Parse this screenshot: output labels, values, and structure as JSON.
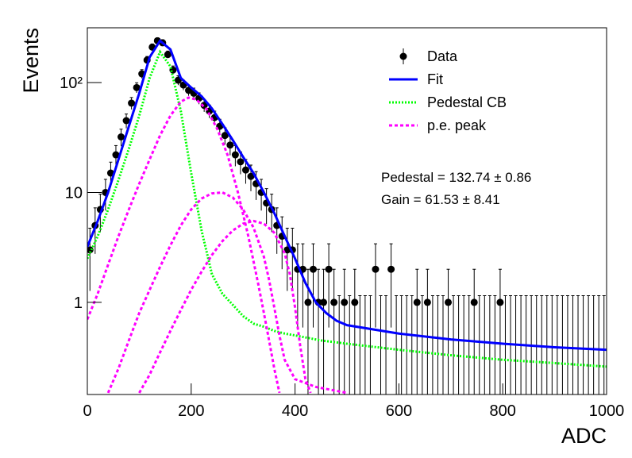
{
  "chart_data": {
    "type": "scatter",
    "x_label": "ADC",
    "y_label": "Events",
    "log_y": true,
    "xlim": [
      0,
      1000
    ],
    "ylim": [
      0.145,
      315
    ],
    "xticks": [
      0,
      200,
      400,
      600,
      800,
      1000
    ],
    "yticks": [
      1,
      10,
      {
        "value": 100,
        "label": "10²"
      }
    ],
    "legend": "upper right",
    "annotations": [
      "Pedestal = 132.74 ± 0.86",
      "Gain = 61.53 ± 8.41"
    ],
    "series": [
      {
        "name": "Data",
        "type": "errorbar",
        "color": "#000000",
        "x": [
          5,
          15,
          25,
          35,
          45,
          55,
          65,
          75,
          85,
          95,
          105,
          115,
          125,
          135,
          145,
          155,
          165,
          175,
          185,
          195,
          205,
          215,
          225,
          235,
          245,
          255,
          265,
          275,
          285,
          295,
          305,
          315,
          325,
          335,
          345,
          355,
          365,
          375,
          385,
          395,
          405,
          415,
          425,
          435,
          445,
          455,
          465,
          475,
          485,
          495,
          505,
          515,
          525,
          535,
          545,
          555,
          565,
          575,
          585,
          595,
          605,
          615,
          625,
          635,
          645,
          655,
          665,
          675,
          685,
          695,
          705,
          715,
          725,
          735,
          745,
          755,
          765,
          775,
          785,
          795,
          805,
          815,
          825,
          835,
          845,
          855,
          865,
          875,
          885,
          895,
          905,
          915,
          925,
          935,
          945,
          955,
          965,
          975,
          985,
          995
        ],
        "values": [
          3,
          5,
          7,
          10,
          15,
          22,
          32,
          45,
          65,
          90,
          120,
          160,
          210,
          240,
          230,
          180,
          130,
          105,
          95,
          85,
          80,
          72,
          62,
          55,
          48,
          40,
          33,
          27,
          22,
          19,
          16,
          14,
          12,
          10,
          8,
          7,
          5,
          4,
          3,
          3,
          2,
          2,
          1,
          2,
          1,
          1,
          2,
          1,
          0,
          1,
          0,
          1,
          0,
          0,
          0,
          2,
          0,
          0,
          2,
          0,
          0,
          0,
          0,
          1,
          0,
          1,
          0,
          0,
          0,
          1,
          0,
          0,
          0,
          0,
          1,
          0,
          0,
          0,
          0,
          1,
          0,
          0,
          0,
          0,
          0,
          0,
          0,
          0,
          0,
          0,
          0,
          0,
          0,
          0,
          0,
          0,
          0,
          0,
          0,
          0
        ],
        "errors": [
          1.73,
          2.24,
          2.65,
          3.16,
          3.87,
          4.69,
          5.66,
          6.71,
          8.06,
          9.49,
          10.95,
          12.65,
          14.49,
          15.49,
          15.17,
          13.42,
          11.4,
          10.25,
          9.75,
          9.22,
          8.94,
          8.49,
          7.87,
          7.42,
          6.93,
          6.32,
          5.74,
          5.2,
          4.69,
          4.36,
          4,
          3.74,
          3.46,
          3.16,
          2.83,
          2.65,
          2.24,
          2,
          1.73,
          1.73,
          1.41,
          1.41,
          1,
          1.41,
          1,
          1,
          1.41,
          1,
          1.15,
          1,
          1.15,
          1,
          1.15,
          1.15,
          1.15,
          1.41,
          1.15,
          1.15,
          1.41,
          1.15,
          1.15,
          1.15,
          1.15,
          1,
          1.15,
          1,
          1.15,
          1.15,
          1.15,
          1,
          1.15,
          1.15,
          1.15,
          1.15,
          1,
          1.15,
          1.15,
          1.15,
          1.15,
          1,
          1.15,
          1.15,
          1.15,
          1.15,
          1.15,
          1.15,
          1.15,
          1.15,
          1.15,
          1.15,
          1.15,
          1.15,
          1.15,
          1.15,
          1.15,
          1.15,
          1.15,
          1.15,
          1.15,
          1.15
        ]
      },
      {
        "name": "Fit",
        "type": "line",
        "style": "solid",
        "color": "#0000ff",
        "x": [
          0,
          20,
          40,
          60,
          80,
          100,
          120,
          140,
          160,
          180,
          200,
          220,
          240,
          260,
          280,
          300,
          320,
          340,
          360,
          380,
          400,
          420,
          440,
          460,
          480,
          500,
          600,
          700,
          800,
          900,
          1000
        ],
        "values": [
          3.2,
          5.5,
          10,
          20,
          40,
          80,
          170,
          240,
          200,
          110,
          90,
          75,
          58,
          42,
          30,
          21,
          15,
          10,
          6.5,
          4,
          2.5,
          1.5,
          1,
          0.8,
          0.68,
          0.62,
          0.52,
          0.46,
          0.42,
          0.39,
          0.37
        ]
      },
      {
        "name": "Pedestal CB",
        "type": "line",
        "style": "dotted",
        "color": "#00ff00",
        "x": [
          0,
          20,
          40,
          60,
          80,
          100,
          120,
          140,
          160,
          180,
          200,
          220,
          240,
          260,
          280,
          300,
          320,
          340,
          360,
          380,
          400,
          450,
          500,
          600,
          700,
          800,
          900,
          1000
        ],
        "values": [
          2.5,
          4,
          7,
          13,
          25,
          50,
          110,
          190,
          140,
          55,
          15,
          4.5,
          1.8,
          1.2,
          0.95,
          0.75,
          0.64,
          0.6,
          0.55,
          0.52,
          0.5,
          0.45,
          0.42,
          0.37,
          0.33,
          0.3,
          0.28,
          0.26
        ]
      },
      {
        "name": "p.e. peak",
        "type": "line",
        "style": "dashed",
        "color": "#ff00ff",
        "x": [
          0,
          20,
          40,
          60,
          80,
          100,
          120,
          140,
          160,
          180,
          195,
          210,
          230,
          250,
          270,
          290,
          310,
          330,
          340,
          350,
          360,
          370
        ],
        "values": [
          0.7,
          1.2,
          2.2,
          4,
          7,
          12,
          20,
          33,
          50,
          67,
          73,
          70,
          57,
          38,
          22,
          10,
          4,
          1.4,
          0.8,
          0.45,
          0.25,
          0.15
        ]
      },
      {
        "type": "line",
        "style": "dashed",
        "color": "#ff00ff",
        "x": [
          40,
          60,
          80,
          100,
          120,
          140,
          160,
          180,
          200,
          220,
          240,
          260,
          280,
          300,
          320,
          340,
          350,
          360,
          370,
          380,
          400,
          440,
          500
        ],
        "values": [
          0.15,
          0.25,
          0.45,
          0.8,
          1.3,
          2.1,
          3.3,
          5,
          7,
          8.8,
          9.8,
          10,
          9,
          7,
          4.8,
          2.6,
          1.6,
          0.9,
          0.5,
          0.3,
          0.2,
          0.17,
          0.15
        ]
      },
      {
        "type": "line",
        "style": "dashed",
        "color": "#ff00ff",
        "x": [
          100,
          120,
          140,
          160,
          180,
          200,
          220,
          240,
          260,
          280,
          300,
          320,
          340,
          360,
          380,
          390,
          400,
          410,
          420,
          430
        ],
        "values": [
          0.15,
          0.22,
          0.35,
          0.55,
          0.85,
          1.3,
          1.9,
          2.7,
          3.6,
          4.5,
          5.2,
          5.5,
          5.2,
          4.3,
          2.8,
          1.8,
          0.9,
          0.4,
          0.2,
          0.15
        ]
      }
    ]
  }
}
